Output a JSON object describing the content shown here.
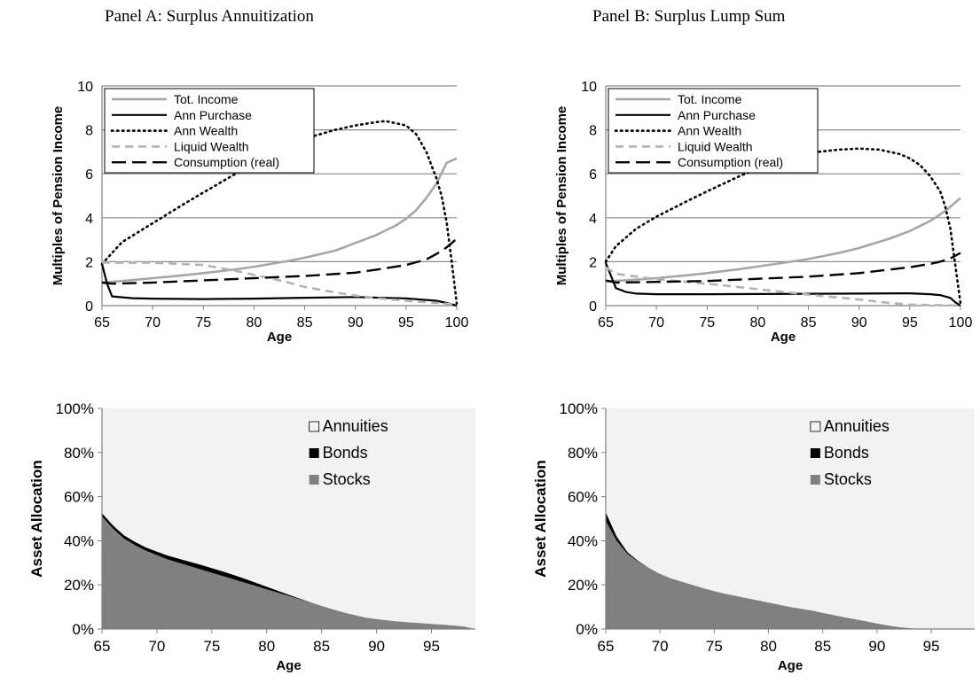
{
  "panels": [
    {
      "title": "Panel A: Surplus Annuitization"
    },
    {
      "title": "Panel B: Surplus Lump Sum"
    }
  ],
  "colors": {
    "tot_income": "#a6a6a6",
    "ann_purchase": "#000000",
    "ann_wealth": "#000000",
    "liquid_wealth": "#b3b3b3",
    "consumption": "#000000",
    "annuities": "#f2f2f2",
    "bonds": "#000000",
    "stocks": "#808080",
    "grid": "#8c8c8c"
  },
  "chart_data": [
    {
      "id": "A-top",
      "panel": "Panel A: Surplus Annuitization",
      "type": "line",
      "xlabel": "Age",
      "ylabel": "Multiples of Pension Income",
      "xlim": [
        65,
        100
      ],
      "ylim": [
        0,
        10
      ],
      "xticks": [
        65,
        70,
        75,
        80,
        85,
        90,
        95,
        100
      ],
      "yticks": [
        0,
        2,
        4,
        6,
        8,
        10
      ],
      "grid": "horizontal",
      "legend": "top-left",
      "series": [
        {
          "name": "Tot. Income",
          "style": "solid-gray",
          "x": [
            65,
            68,
            70,
            73,
            75,
            78,
            80,
            83,
            85,
            88,
            90,
            92,
            94,
            95,
            96,
            97,
            98,
            99,
            100
          ],
          "y": [
            1.05,
            1.16,
            1.25,
            1.38,
            1.48,
            1.64,
            1.77,
            2.0,
            2.18,
            2.5,
            2.85,
            3.2,
            3.65,
            3.95,
            4.35,
            4.9,
            5.55,
            6.5,
            6.7
          ]
        },
        {
          "name": "Ann Purchase",
          "style": "solid-black",
          "x": [
            65,
            65.5,
            66,
            68,
            70,
            75,
            80,
            85,
            90,
            95,
            98,
            99,
            100
          ],
          "y": [
            1.9,
            1.0,
            0.42,
            0.34,
            0.32,
            0.3,
            0.32,
            0.36,
            0.39,
            0.33,
            0.22,
            0.12,
            0.0
          ]
        },
        {
          "name": "Ann Wealth",
          "style": "dotted-black",
          "x": [
            65,
            67,
            70,
            73,
            75,
            78,
            80,
            83,
            85,
            88,
            90,
            92,
            93,
            95,
            96,
            97,
            98,
            98.5,
            99,
            99.5,
            100
          ],
          "y": [
            1.9,
            2.9,
            3.75,
            4.6,
            5.15,
            5.95,
            6.5,
            7.2,
            7.6,
            8.0,
            8.2,
            8.35,
            8.4,
            8.2,
            7.8,
            7.0,
            5.8,
            5.0,
            3.8,
            2.0,
            0.1
          ]
        },
        {
          "name": "Liquid Wealth",
          "style": "dashed-gray",
          "x": [
            65,
            70,
            75,
            78,
            80,
            83,
            85,
            88,
            90,
            93,
            95,
            98,
            100
          ],
          "y": [
            1.95,
            1.95,
            1.85,
            1.6,
            1.4,
            1.1,
            0.85,
            0.6,
            0.45,
            0.3,
            0.22,
            0.12,
            0.05
          ]
        },
        {
          "name": "Consumption (real)",
          "style": "dashed-black",
          "x": [
            65,
            66,
            70,
            75,
            80,
            85,
            90,
            93,
            95,
            97,
            98,
            99,
            100
          ],
          "y": [
            1.05,
            1.0,
            1.05,
            1.15,
            1.25,
            1.35,
            1.5,
            1.7,
            1.85,
            2.1,
            2.35,
            2.65,
            3.05
          ]
        }
      ]
    },
    {
      "id": "B-top",
      "panel": "Panel B: Surplus Lump Sum",
      "type": "line",
      "xlabel": "Age",
      "ylabel": "Multiples of Pension Income",
      "xlim": [
        65,
        100
      ],
      "ylim": [
        0,
        10
      ],
      "xticks": [
        65,
        70,
        75,
        80,
        85,
        90,
        95,
        100
      ],
      "yticks": [
        0,
        2,
        4,
        6,
        8,
        10
      ],
      "grid": "horizontal",
      "legend": "top-left",
      "series": [
        {
          "name": "Tot. Income",
          "style": "solid-gray",
          "x": [
            65,
            68,
            70,
            73,
            75,
            78,
            80,
            83,
            85,
            88,
            90,
            93,
            95,
            97,
            98,
            99,
            100
          ],
          "y": [
            1.1,
            1.18,
            1.25,
            1.38,
            1.48,
            1.65,
            1.78,
            1.98,
            2.12,
            2.4,
            2.62,
            3.05,
            3.4,
            3.85,
            4.15,
            4.5,
            4.9
          ]
        },
        {
          "name": "Ann Purchase",
          "style": "solid-black",
          "x": [
            65,
            66,
            67,
            68,
            70,
            75,
            80,
            85,
            90,
            95,
            97,
            98,
            99,
            99.5,
            100
          ],
          "y": [
            1.95,
            0.8,
            0.62,
            0.55,
            0.52,
            0.52,
            0.53,
            0.54,
            0.55,
            0.56,
            0.52,
            0.48,
            0.35,
            0.15,
            0.0
          ]
        },
        {
          "name": "Ann Wealth",
          "style": "dotted-black",
          "x": [
            65,
            66,
            68,
            70,
            73,
            75,
            78,
            80,
            83,
            85,
            88,
            90,
            92,
            94,
            95,
            96,
            97,
            98,
            98.5,
            99,
            99.5,
            100
          ],
          "y": [
            2.0,
            2.7,
            3.5,
            4.05,
            4.75,
            5.2,
            5.85,
            6.25,
            6.7,
            6.95,
            7.1,
            7.15,
            7.1,
            6.9,
            6.7,
            6.4,
            5.9,
            5.2,
            4.5,
            3.5,
            1.8,
            0.1
          ]
        },
        {
          "name": "Liquid Wealth",
          "style": "dashed-gray",
          "x": [
            65,
            66,
            70,
            75,
            80,
            85,
            90,
            93,
            95,
            98,
            100
          ],
          "y": [
            1.75,
            1.45,
            1.2,
            1.0,
            0.75,
            0.5,
            0.28,
            0.12,
            0.05,
            0.02,
            0.0
          ]
        },
        {
          "name": "Consumption (real)",
          "style": "dashed-black",
          "x": [
            65,
            66,
            70,
            75,
            80,
            85,
            90,
            95,
            97,
            98,
            99,
            100
          ],
          "y": [
            1.15,
            1.05,
            1.08,
            1.12,
            1.22,
            1.32,
            1.48,
            1.75,
            1.9,
            2.0,
            2.15,
            2.4
          ]
        }
      ]
    },
    {
      "id": "A-bottom",
      "panel": "Panel A: Surplus Annuitization",
      "type": "area",
      "stacked": true,
      "xlabel": "Age",
      "ylabel": "Asset Allocation",
      "xlim": [
        65,
        99
      ],
      "ylim": [
        0,
        100
      ],
      "xticks": [
        65,
        70,
        75,
        80,
        85,
        90,
        95
      ],
      "yticks": [
        0,
        20,
        40,
        60,
        80,
        100
      ],
      "ytick_labels": [
        "0%",
        "20%",
        "40%",
        "60%",
        "80%",
        "100%"
      ],
      "legend": "top-right",
      "legend_order": [
        "Annuities",
        "Bonds",
        "Stocks"
      ],
      "x": [
        65,
        66,
        67,
        68,
        69,
        70,
        71,
        72,
        73,
        74,
        75,
        76,
        77,
        78,
        79,
        80,
        81,
        82,
        83,
        84,
        85,
        86,
        87,
        88,
        89,
        90,
        91,
        92,
        93,
        94,
        95,
        96,
        97,
        98,
        99
      ],
      "series": [
        {
          "name": "Stocks",
          "values": [
            51,
            45.5,
            41,
            38,
            35.5,
            33.5,
            31.5,
            30,
            28.5,
            27,
            25.5,
            24,
            22.5,
            21,
            19.5,
            18,
            16.5,
            15,
            13.5,
            12,
            10.5,
            9,
            7.5,
            6.3,
            5.2,
            4.5,
            3.9,
            3.4,
            3.0,
            2.7,
            2.3,
            2.0,
            1.6,
            1.1,
            0
          ]
        },
        {
          "name": "Bonds",
          "values": [
            1.5,
            1.5,
            1.5,
            1.5,
            1.5,
            1.6,
            1.8,
            1.9,
            2.0,
            2.1,
            2.1,
            2.1,
            2.0,
            1.8,
            1.5,
            1.2,
            0.9,
            0.6,
            0.3,
            0.1,
            0,
            0,
            0,
            0,
            0,
            0,
            0,
            0,
            0,
            0,
            0,
            0,
            0,
            0,
            0
          ]
        },
        {
          "name": "Annuities",
          "values": [
            47.5,
            53,
            57.5,
            60.5,
            63,
            64.9,
            66.7,
            68.1,
            69.5,
            70.9,
            72.4,
            73.9,
            75.5,
            77.2,
            79,
            80.8,
            82.6,
            84.4,
            86.2,
            87.9,
            89.5,
            91,
            92.5,
            93.7,
            94.8,
            95.5,
            96.1,
            96.6,
            97,
            97.3,
            97.7,
            98,
            98.4,
            98.9,
            100
          ]
        }
      ]
    },
    {
      "id": "B-bottom",
      "panel": "Panel B: Surplus Lump Sum",
      "type": "area",
      "stacked": true,
      "xlabel": "Age",
      "ylabel": "Asset Allocation",
      "xlim": [
        65,
        99
      ],
      "ylim": [
        0,
        100
      ],
      "xticks": [
        65,
        70,
        75,
        80,
        85,
        90,
        95
      ],
      "yticks": [
        0,
        20,
        40,
        60,
        80,
        100
      ],
      "ytick_labels": [
        "0%",
        "20%",
        "40%",
        "60%",
        "80%",
        "100%"
      ],
      "legend": "top-right",
      "legend_order": [
        "Annuities",
        "Bonds",
        "Stocks"
      ],
      "x": [
        65,
        66,
        67,
        68,
        69,
        70,
        71,
        72,
        73,
        74,
        75,
        76,
        77,
        78,
        79,
        80,
        81,
        82,
        83,
        84,
        85,
        86,
        87,
        88,
        89,
        90,
        91,
        92,
        93,
        94,
        95,
        96,
        97,
        98,
        99
      ],
      "series": [
        {
          "name": "Stocks",
          "values": [
            49,
            40,
            34,
            30.5,
            27.5,
            25,
            23,
            21.5,
            20,
            18.5,
            17.2,
            16,
            15,
            14,
            13,
            12,
            11,
            10,
            9.2,
            8.4,
            7.3,
            6.3,
            5.3,
            4.4,
            3.5,
            2.5,
            1.6,
            0.9,
            0.4,
            0.1,
            0,
            0,
            0,
            0,
            0
          ]
        },
        {
          "name": "Bonds",
          "values": [
            4,
            2,
            0.8,
            0.3,
            0.1,
            0,
            0,
            0,
            0,
            0,
            0,
            0,
            0,
            0,
            0,
            0,
            0,
            0,
            0,
            0,
            0,
            0,
            0,
            0,
            0,
            0,
            0,
            0,
            0,
            0,
            0,
            0,
            0,
            0,
            0
          ]
        },
        {
          "name": "Annuities",
          "values": [
            47,
            58,
            65.2,
            69.2,
            72.4,
            75,
            77,
            78.5,
            80,
            81.5,
            82.8,
            84,
            85,
            86,
            87,
            88,
            89,
            90,
            90.8,
            91.6,
            92.7,
            93.7,
            94.7,
            95.6,
            96.5,
            97.5,
            98.4,
            99.1,
            99.6,
            99.9,
            100,
            100,
            100,
            100,
            100
          ]
        }
      ]
    }
  ]
}
